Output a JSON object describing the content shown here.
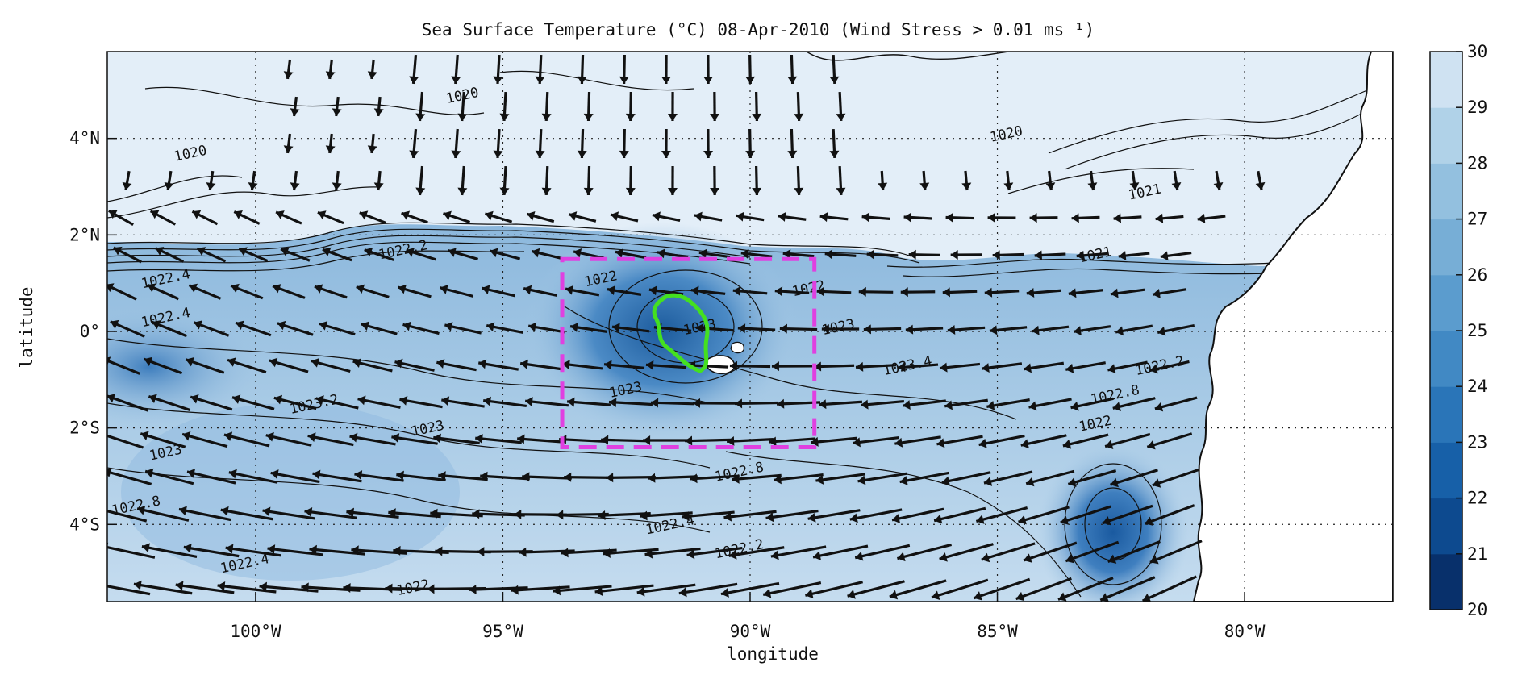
{
  "title": "Sea Surface Temperature (°C) 08-Apr-2010 (Wind Stress > 0.01 ms⁻¹)",
  "map": {
    "xlabel": "longitude",
    "ylabel": "latitude",
    "lon_range": [
      -103,
      -77
    ],
    "lat_range": [
      -5.6,
      5.8
    ],
    "lon_ticks": [
      {
        "value": -100,
        "label": "100°W"
      },
      {
        "value": -95,
        "label": "95°W"
      },
      {
        "value": -90,
        "label": "90°W"
      },
      {
        "value": -85,
        "label": "85°W"
      },
      {
        "value": -80,
        "label": "80°W"
      }
    ],
    "lat_ticks": [
      {
        "value": 4,
        "label": "4°N"
      },
      {
        "value": 2,
        "label": "2°N"
      },
      {
        "value": 0,
        "label": "0°"
      },
      {
        "value": -2,
        "label": "2°S"
      },
      {
        "value": -4,
        "label": "4°S"
      }
    ],
    "grid": "dotted",
    "box": {
      "lon_min": -93.8,
      "lon_max": -88.7,
      "lat_min": -2.4,
      "lat_max": 1.5,
      "color": "#e040e0"
    },
    "green_contour_color": "#44e020",
    "contour_labels": [
      {
        "text": "1020",
        "lon": -95.8,
        "lat": 4.8
      },
      {
        "text": "1020",
        "lon": -101.3,
        "lat": 3.6
      },
      {
        "text": "1020",
        "lon": -84.8,
        "lat": 4.0
      },
      {
        "text": "1021",
        "lon": -82.0,
        "lat": 2.8
      },
      {
        "text": "1021",
        "lon": -83.0,
        "lat": 1.5
      },
      {
        "text": "1022.4",
        "lon": -101.8,
        "lat": 1.0
      },
      {
        "text": "1022.4",
        "lon": -101.8,
        "lat": 0.2
      },
      {
        "text": "1022.2",
        "lon": -97.0,
        "lat": 1.6
      },
      {
        "text": "1022",
        "lon": -93.0,
        "lat": 1.0
      },
      {
        "text": "1022",
        "lon": -88.8,
        "lat": 0.8
      },
      {
        "text": "1023",
        "lon": -88.2,
        "lat": 0.0
      },
      {
        "text": "1023",
        "lon": -91.0,
        "lat": 0.0
      },
      {
        "text": "1023.4",
        "lon": -86.8,
        "lat": -0.8
      },
      {
        "text": "1023",
        "lon": -96.5,
        "lat": -2.1
      },
      {
        "text": "1023.2",
        "lon": -98.8,
        "lat": -1.6
      },
      {
        "text": "1023",
        "lon": -101.8,
        "lat": -2.6
      },
      {
        "text": "1022.8",
        "lon": -102.4,
        "lat": -3.7
      },
      {
        "text": "1022.4",
        "lon": -100.2,
        "lat": -4.9
      },
      {
        "text": "1022",
        "lon": -96.8,
        "lat": -5.4
      },
      {
        "text": "1022.8",
        "lon": -90.2,
        "lat": -3.0
      },
      {
        "text": "1022.4",
        "lon": -91.6,
        "lat": -4.1
      },
      {
        "text": "1022.2",
        "lon": -90.2,
        "lat": -4.6
      },
      {
        "text": "1023",
        "lon": -92.5,
        "lat": -1.3
      },
      {
        "text": "1022",
        "lon": -83.0,
        "lat": -2.0
      },
      {
        "text": "1022.8",
        "lon": -82.6,
        "lat": -1.4
      },
      {
        "text": "1022.2",
        "lon": -81.7,
        "lat": -0.8
      }
    ]
  },
  "colorbar": {
    "min": 20,
    "max": 30,
    "ticks": [
      20,
      21,
      22,
      23,
      24,
      25,
      26,
      27,
      28,
      29,
      30
    ],
    "colors": [
      "#08306b",
      "#0d4a8f",
      "#1760a8",
      "#2a75b8",
      "#4189c4",
      "#5b9cce",
      "#77aed6",
      "#93c0df",
      "#b0d2e8",
      "#cfe2f2",
      "#eaf3fb"
    ]
  }
}
